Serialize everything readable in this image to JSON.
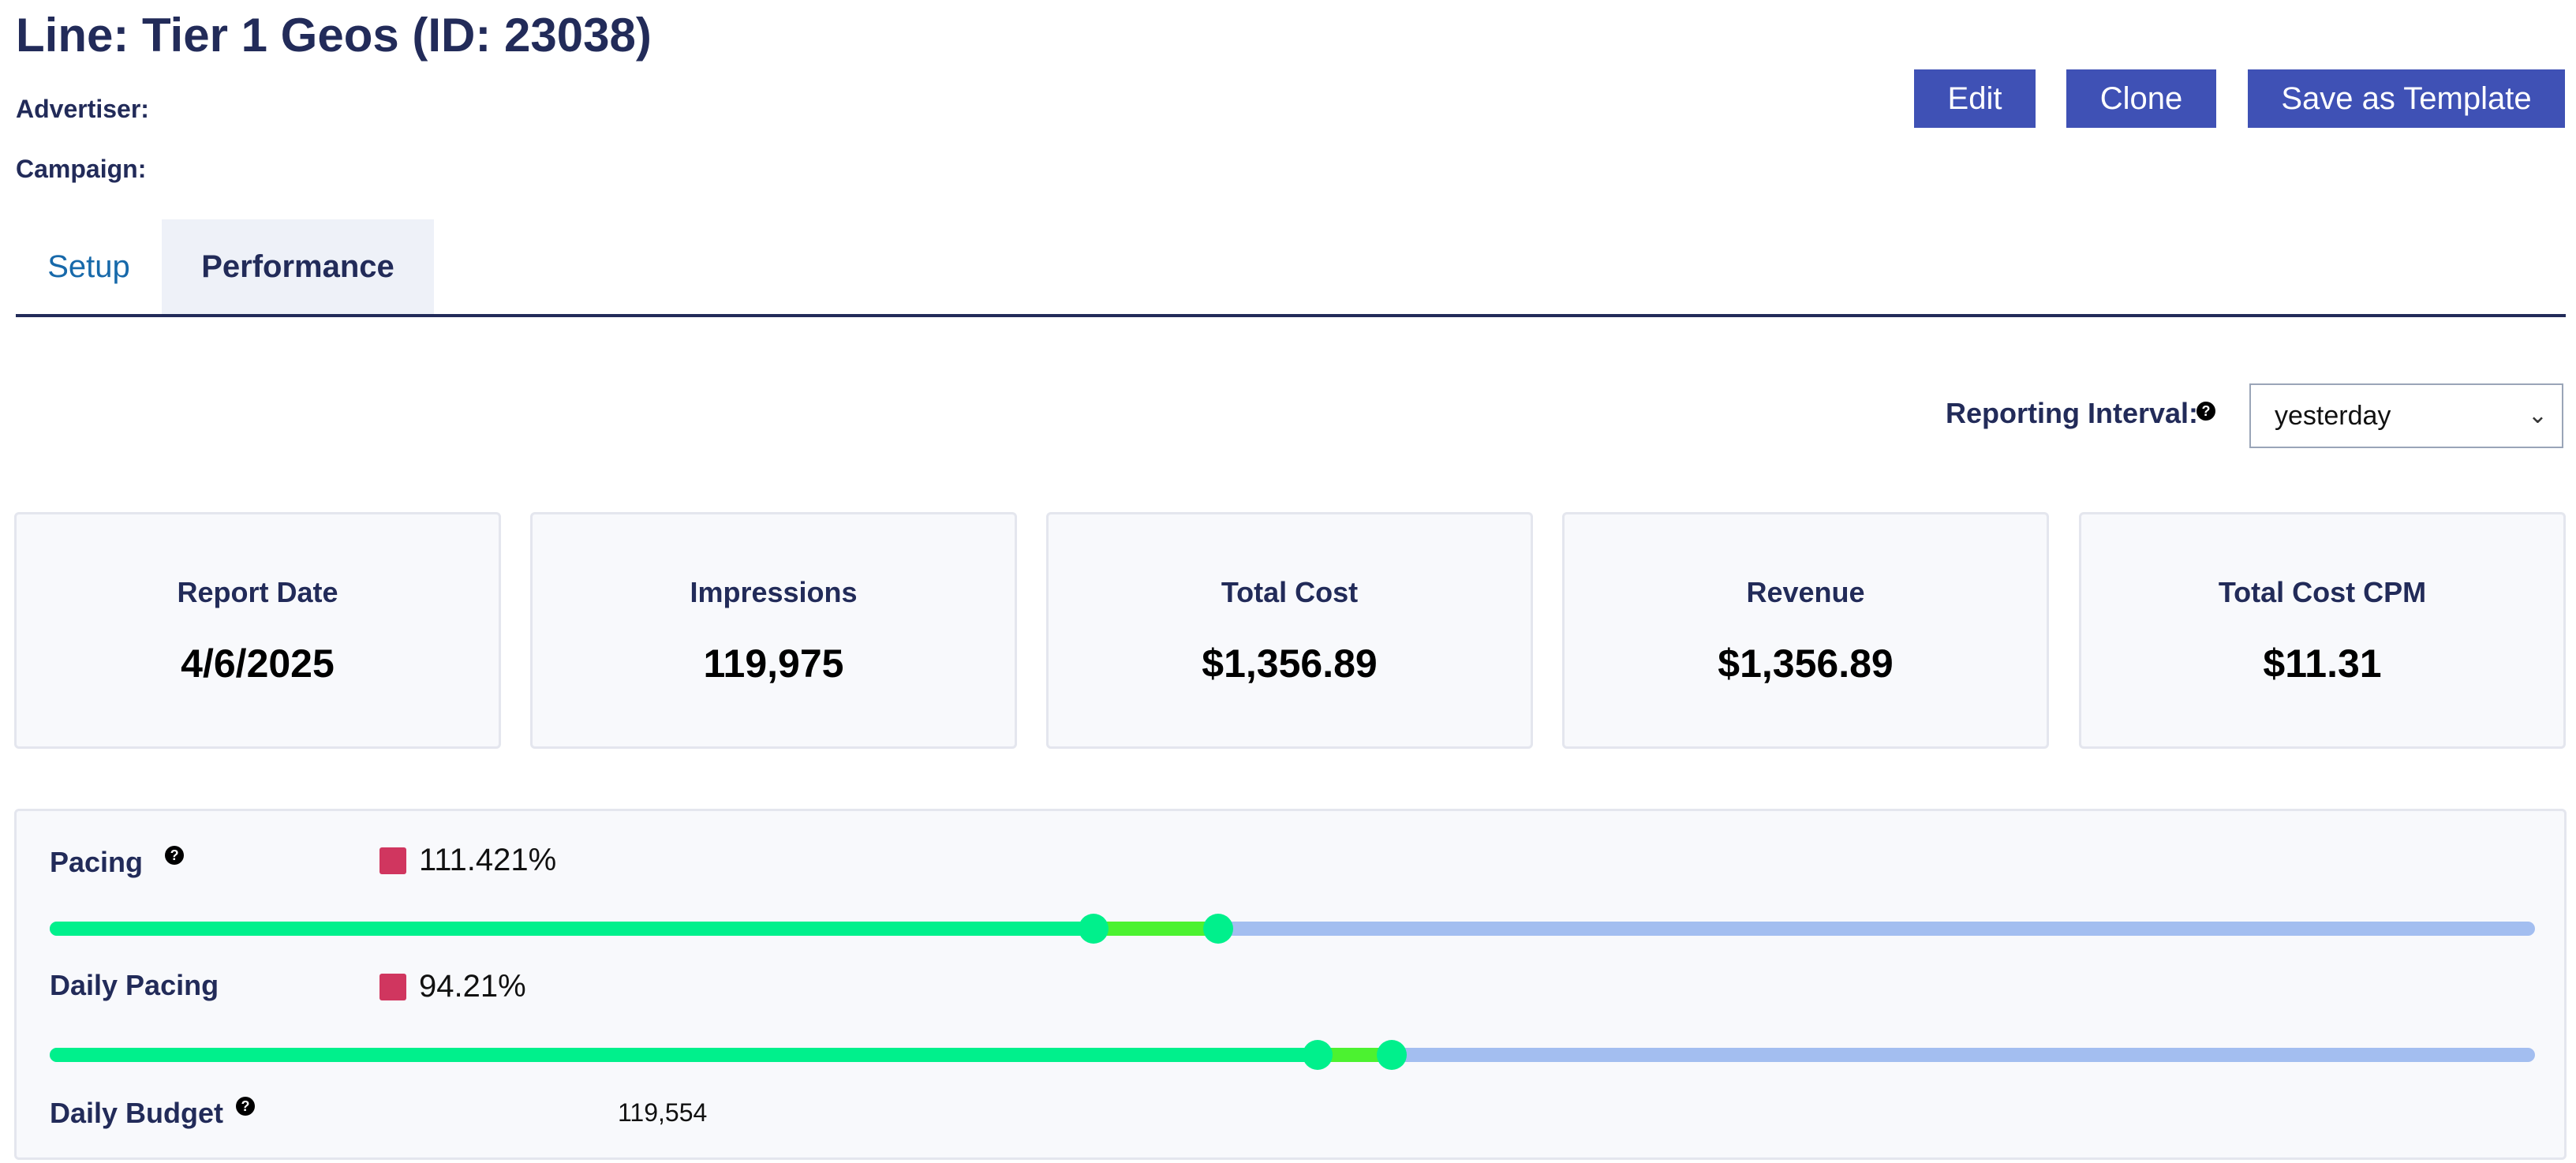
{
  "header": {
    "title": "Line: Tier 1 Geos (ID: 23038)",
    "advertiser_label": "Advertiser:",
    "campaign_label": "Campaign:"
  },
  "actions": {
    "edit": "Edit",
    "clone": "Clone",
    "save_template": "Save as Template"
  },
  "tabs": [
    {
      "label": "Setup",
      "active": false
    },
    {
      "label": "Performance",
      "active": true
    }
  ],
  "reporting": {
    "label": "Reporting Interval:",
    "help_icon": "help-circle-icon",
    "selected": "yesterday"
  },
  "cards": [
    {
      "label": "Report Date",
      "value": "4/6/2025"
    },
    {
      "label": "Impressions",
      "value": "119,975"
    },
    {
      "label": "Total Cost",
      "value": "$1,356.89"
    },
    {
      "label": "Revenue",
      "value": "$1,356.89"
    },
    {
      "label": "Total Cost CPM",
      "value": "$11.31"
    }
  ],
  "pacing": {
    "label": "Pacing",
    "value": "111.421%",
    "swatch_color": "#d0365f",
    "bar_start": 0.42,
    "bar_end": 0.47
  },
  "daily_pacing": {
    "label": "Daily Pacing",
    "value": "94.21%",
    "swatch_color": "#d0365f",
    "bar_start": 0.51,
    "bar_end": 0.54
  },
  "daily_budget": {
    "label": "Daily Budget",
    "value": "119,554"
  },
  "colors": {
    "accent": "#3f51b5",
    "track": "#a3bef0",
    "progress": "#00f08c",
    "progress_extra": "#4cf230"
  }
}
